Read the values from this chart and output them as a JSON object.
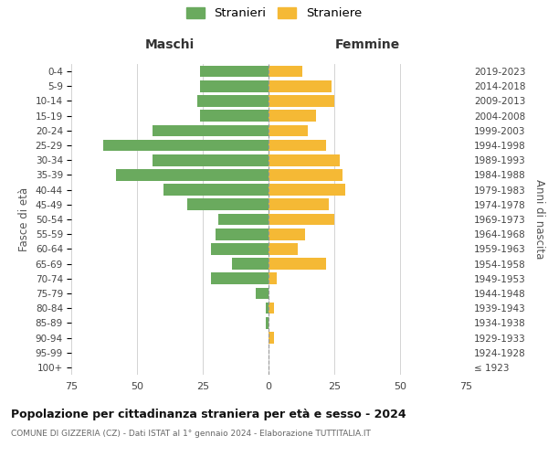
{
  "age_groups": [
    "100+",
    "95-99",
    "90-94",
    "85-89",
    "80-84",
    "75-79",
    "70-74",
    "65-69",
    "60-64",
    "55-59",
    "50-54",
    "45-49",
    "40-44",
    "35-39",
    "30-34",
    "25-29",
    "20-24",
    "15-19",
    "10-14",
    "5-9",
    "0-4"
  ],
  "birth_years": [
    "≤ 1923",
    "1924-1928",
    "1929-1933",
    "1934-1938",
    "1939-1943",
    "1944-1948",
    "1949-1953",
    "1954-1958",
    "1959-1963",
    "1964-1968",
    "1969-1973",
    "1974-1978",
    "1979-1983",
    "1984-1988",
    "1989-1993",
    "1994-1998",
    "1999-2003",
    "2004-2008",
    "2009-2013",
    "2014-2018",
    "2019-2023"
  ],
  "maschi": [
    0,
    0,
    0,
    1,
    1,
    5,
    22,
    14,
    22,
    20,
    19,
    31,
    40,
    58,
    44,
    63,
    44,
    26,
    27,
    26,
    26
  ],
  "femmine": [
    0,
    0,
    2,
    0,
    2,
    0,
    3,
    22,
    11,
    14,
    25,
    23,
    29,
    28,
    27,
    22,
    15,
    18,
    25,
    24,
    13
  ],
  "maschi_color": "#6aaa5e",
  "femmine_color": "#f5b935",
  "grid_color": "#cccccc",
  "background_color": "#ffffff",
  "title": "Popolazione per cittadinanza straniera per età e sesso - 2024",
  "subtitle": "COMUNE DI GIZZERIA (CZ) - Dati ISTAT al 1° gennaio 2024 - Elaborazione TUTTITALIA.IT",
  "xlabel_left": "Maschi",
  "xlabel_right": "Femmine",
  "ylabel_left": "Fasce di età",
  "ylabel_right": "Anni di nascita",
  "legend_maschi": "Stranieri",
  "legend_femmine": "Straniere",
  "xlim": 75
}
